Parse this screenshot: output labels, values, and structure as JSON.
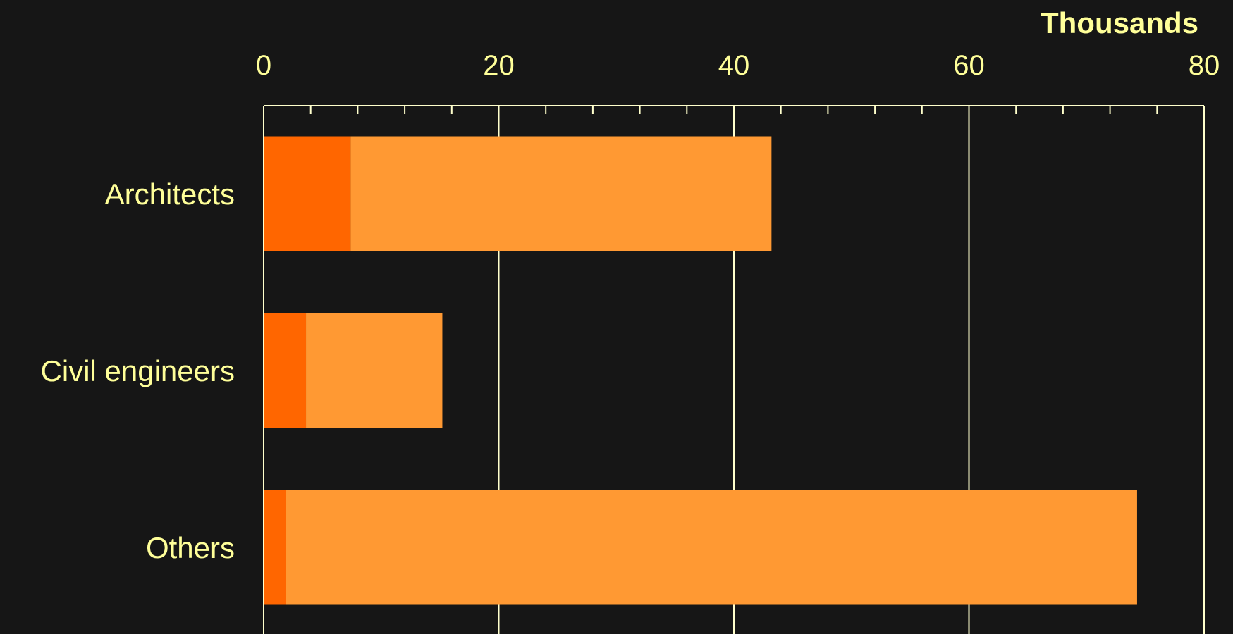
{
  "chart_data": {
    "type": "bar",
    "orientation": "horizontal",
    "stacked": true,
    "unit_label": "Thousands",
    "categories": [
      "Architects",
      "Civil engineers",
      "Others"
    ],
    "series": [
      {
        "values": [
          7.4,
          3.6,
          1.9
        ],
        "color": "#ff6600"
      },
      {
        "values": [
          35.8,
          11.6,
          72.4
        ],
        "color": "#ff9933"
      }
    ],
    "xlim": [
      0,
      80
    ],
    "major_ticks": [
      0,
      20,
      40,
      60,
      80
    ],
    "minor_tick_step": 4,
    "tick_labels": [
      "0",
      "20",
      "40",
      "60",
      "80"
    ],
    "axis_position": "top",
    "grid": true,
    "colors": {
      "background": "#161616",
      "text": "#ffff99",
      "grid": "#ffffcc"
    }
  }
}
